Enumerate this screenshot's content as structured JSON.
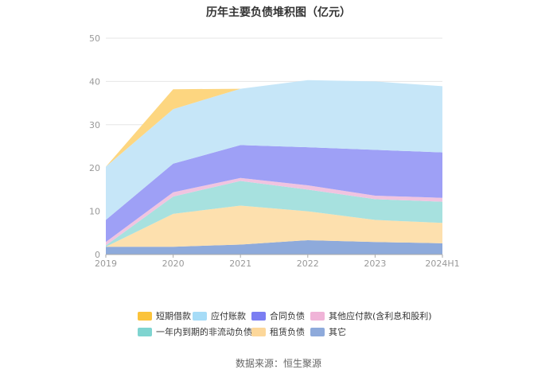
{
  "chart_data": {
    "type": "area",
    "stacked": true,
    "title": "历年主要负债堆积图（亿元）",
    "x": [
      "2019",
      "2020",
      "2021",
      "2022",
      "2023",
      "2024H1"
    ],
    "ylim": [
      0,
      50
    ],
    "yticks": [
      0,
      10,
      20,
      30,
      40,
      50
    ],
    "grid": true,
    "legend_position": "bottom",
    "series": [
      {
        "name": "其它",
        "color": "#8eaadb",
        "values": [
          1.8,
          1.8,
          2.3,
          3.3,
          2.9,
          2.6
        ]
      },
      {
        "name": "租赁负债",
        "color": "#fde0ae",
        "values": [
          0.0,
          7.6,
          9.0,
          6.7,
          5.1,
          4.7
        ]
      },
      {
        "name": "一年内到期的非流动负债",
        "color": "#a7e1df",
        "values": [
          0.3,
          4.0,
          5.7,
          5.0,
          4.8,
          4.9
        ]
      },
      {
        "name": "其他应付款(含利息和股利)",
        "color": "#f0c4e0",
        "values": [
          0.8,
          1.0,
          0.7,
          1.0,
          0.8,
          0.9
        ]
      },
      {
        "name": "合同负债",
        "color": "#9ea0f6",
        "values": [
          5.1,
          6.6,
          7.6,
          8.8,
          10.6,
          10.5
        ]
      },
      {
        "name": "应付账款",
        "color": "#c6e6f8",
        "values": [
          12.3,
          12.6,
          13.0,
          15.5,
          15.8,
          15.3
        ]
      },
      {
        "name": "短期借款",
        "color": "#fdd680",
        "values": [
          0.0,
          4.6,
          0.0,
          0.0,
          0.0,
          0.0
        ]
      }
    ],
    "legend": [
      {
        "name": "短期借款",
        "color": "#fbc33b"
      },
      {
        "name": "应付账款",
        "color": "#a6dcf7"
      },
      {
        "name": "合同负债",
        "color": "#7b7ef2"
      },
      {
        "name": "其他应付款(含利息和股利)",
        "color": "#f0b4d8"
      },
      {
        "name": "一年内到期的非流动负债",
        "color": "#7fd4d0"
      },
      {
        "name": "租赁负债",
        "color": "#fcd79a"
      },
      {
        "name": "其它",
        "color": "#8eaadb"
      }
    ],
    "source": "数据来源：恒生聚源"
  }
}
